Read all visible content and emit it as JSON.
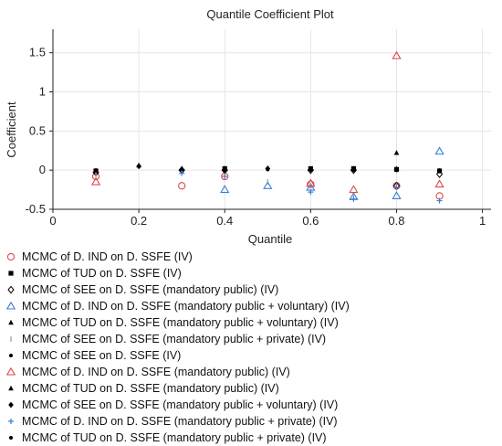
{
  "chart_data": {
    "type": "scatter",
    "title": "Quantile Coefficient Plot",
    "xlabel": "Quantile",
    "ylabel": "Coefficient",
    "xlim": [
      0,
      1.02
    ],
    "ylim": [
      -0.5,
      1.8
    ],
    "xticks": [
      0,
      0.2,
      0.4,
      0.6,
      0.8,
      1
    ],
    "xtick_labels": [
      "0",
      "0.2",
      "0.4",
      "0.6",
      "0.8",
      "1"
    ],
    "yticks": [
      -0.5,
      0,
      0.5,
      1,
      1.5
    ],
    "ytick_labels": [
      "-0.5",
      "0",
      "0.5",
      "1",
      "1.5"
    ],
    "grid": true,
    "legend_position": "bottom",
    "series": [
      {
        "name": "MCMC of D. IND on D. SSFE (IV)",
        "marker": "circle",
        "color": "#e0484d",
        "x": [
          0.1,
          0.3,
          0.4,
          0.6,
          0.8,
          0.9
        ],
        "y": [
          -0.08,
          -0.2,
          -0.08,
          -0.18,
          -0.2,
          -0.33
        ]
      },
      {
        "name": "MCMC of TUD on D. SSFE (IV)",
        "marker": "square",
        "color": "#000000",
        "x": [
          0.1,
          0.4,
          0.6,
          0.7,
          0.8,
          0.9
        ],
        "y": [
          -0.01,
          0.02,
          0.02,
          0.02,
          0.01,
          -0.01
        ]
      },
      {
        "name": "MCMC of SEE on D. SSFE (mandatory public) (IV)",
        "marker": "diamond-open",
        "color": "#000000",
        "x": [
          0.1,
          0.3,
          0.4,
          0.6,
          0.7,
          0.8,
          0.9
        ],
        "y": [
          -0.03,
          0.0,
          0.0,
          0.0,
          0.0,
          -0.2,
          -0.05
        ]
      },
      {
        "name": "MCMC of D. IND on D. SSFE (mandatory public + voluntary) (IV)",
        "marker": "triangle-open",
        "color": "#3a7fd5",
        "x": [
          0.4,
          0.5,
          0.6,
          0.7,
          0.8,
          0.9
        ],
        "y": [
          -0.25,
          -0.2,
          -0.22,
          -0.34,
          -0.33,
          0.24
        ]
      },
      {
        "name": "MCMC of TUD on D. SSFE (mandatory public + voluntary) (IV)",
        "marker": "triangle",
        "color": "#000000",
        "x": [
          0.2,
          0.3,
          0.4,
          0.7,
          0.8
        ],
        "y": [
          0.06,
          0.01,
          0.01,
          0.02,
          0.22
        ]
      },
      {
        "name": "MCMC of SEE on D. SSFE (mandatory public + private) (IV)",
        "marker": "vline",
        "color": "#8a9ba8",
        "x": [
          0.1,
          0.4,
          0.5,
          0.6,
          0.7,
          0.8
        ],
        "y": [
          -0.06,
          -0.06,
          -0.15,
          -0.2,
          -0.35,
          -0.2
        ]
      },
      {
        "name": "MCMC of SEE on D. SSFE (IV)",
        "marker": "dot",
        "color": "#000000",
        "x": [
          0.1,
          0.4,
          0.5,
          0.6,
          0.7,
          0.8,
          0.9
        ],
        "y": [
          0.0,
          0.0,
          0.01,
          0.01,
          0.01,
          0.0,
          0.0
        ]
      },
      {
        "name": "MCMC of D. IND on D. SSFE (mandatory public) (IV)",
        "marker": "triangle-open",
        "color": "#e0484d",
        "x": [
          0.1,
          0.6,
          0.7,
          0.8,
          0.9
        ],
        "y": [
          -0.15,
          -0.17,
          -0.25,
          1.46,
          -0.18
        ]
      },
      {
        "name": "MCMC of TUD on D. SSFE (mandatory public) (IV)",
        "marker": "triangle",
        "color": "#000000",
        "x": [
          0.3,
          0.4,
          0.6,
          0.8
        ],
        "y": [
          0.02,
          0.02,
          0.01,
          0.01
        ]
      },
      {
        "name": "MCMC of SEE on D. SSFE (mandatory public + voluntary) (IV)",
        "marker": "diamond",
        "color": "#000000",
        "x": [
          0.2,
          0.4,
          0.5,
          0.6,
          0.7,
          0.8
        ],
        "y": [
          0.05,
          0.0,
          0.02,
          0.01,
          0.01,
          0.01
        ]
      },
      {
        "name": "MCMC of D. IND on D. SSFE (mandatory public + private) (IV)",
        "marker": "plus",
        "color": "#3a7fd5",
        "x": [
          0.3,
          0.4,
          0.6,
          0.7,
          0.8,
          0.9
        ],
        "y": [
          -0.04,
          -0.08,
          -0.28,
          -0.37,
          -0.22,
          -0.39
        ]
      },
      {
        "name": "MCMC of TUD on D. SSFE (mandatory public + private) (IV)",
        "marker": "dot",
        "color": "#000000",
        "x": [
          0.4,
          0.6,
          0.7,
          0.8
        ],
        "y": [
          0.01,
          0.01,
          0.0,
          0.0
        ]
      }
    ]
  }
}
